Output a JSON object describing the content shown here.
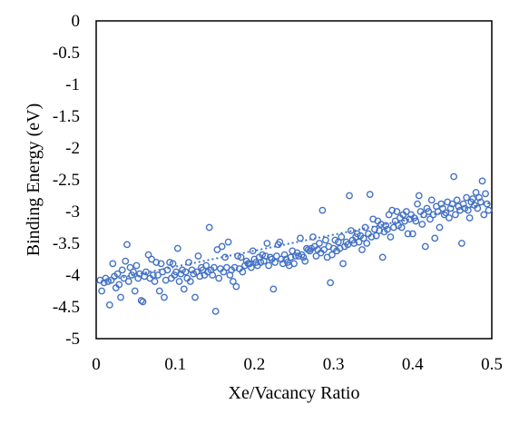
{
  "chart_data": {
    "type": "scatter",
    "title": "",
    "xlabel": "Xe/Vacancy Ratio",
    "ylabel": "Binding Energy (eV)",
    "xlim": [
      0,
      0.5
    ],
    "ylim": [
      -5,
      0
    ],
    "x_ticks": [
      "0",
      "0.1",
      "0.2",
      "0.3",
      "0.4",
      "0.5"
    ],
    "y_ticks": [
      "0",
      "-0.5",
      "-1",
      "-1.5",
      "-2",
      "-2.5",
      "-3",
      "-3.5",
      "-4",
      "-4.5",
      "-5"
    ],
    "grid": false,
    "legend": "none",
    "marker": "open-circle",
    "marker_color": "#4472C4",
    "trendline": {
      "style": "dotted",
      "color": "#4472C4",
      "x": [
        0.0,
        0.5
      ],
      "y": [
        -4.12,
        -2.86
      ]
    },
    "series": [
      {
        "points": [
          [
            0.005,
            -4.08
          ],
          [
            0.007,
            -4.25
          ],
          [
            0.01,
            -4.12
          ],
          [
            0.012,
            -4.05
          ],
          [
            0.015,
            -4.1
          ],
          [
            0.017,
            -4.47
          ],
          [
            0.019,
            -4.08
          ],
          [
            0.021,
            -3.82
          ],
          [
            0.023,
            -4.02
          ],
          [
            0.025,
            -4.2
          ],
          [
            0.027,
            -3.98
          ],
          [
            0.029,
            -4.15
          ],
          [
            0.031,
            -4.35
          ],
          [
            0.033,
            -3.92
          ],
          [
            0.035,
            -4.05
          ],
          [
            0.037,
            -3.78
          ],
          [
            0.039,
            -3.52
          ],
          [
            0.041,
            -4.1
          ],
          [
            0.043,
            -3.88
          ],
          [
            0.045,
            -4.0
          ],
          [
            0.047,
            -3.95
          ],
          [
            0.049,
            -4.25
          ],
          [
            0.051,
            -3.85
          ],
          [
            0.053,
            -4.05
          ],
          [
            0.055,
            -3.98
          ],
          [
            0.057,
            -4.4
          ],
          [
            0.059,
            -4.42
          ],
          [
            0.061,
            -4.02
          ],
          [
            0.063,
            -3.95
          ],
          [
            0.066,
            -3.68
          ],
          [
            0.068,
            -4.05
          ],
          [
            0.07,
            -3.75
          ],
          [
            0.072,
            -4.0
          ],
          [
            0.074,
            -4.1
          ],
          [
            0.076,
            -3.8
          ],
          [
            0.078,
            -4.0
          ],
          [
            0.08,
            -4.25
          ],
          [
            0.082,
            -3.82
          ],
          [
            0.084,
            -3.95
          ],
          [
            0.086,
            -4.35
          ],
          [
            0.088,
            -4.08
          ],
          [
            0.09,
            -3.92
          ],
          [
            0.093,
            -3.8
          ],
          [
            0.095,
            -4.05
          ],
          [
            0.097,
            -3.82
          ],
          [
            0.099,
            -4.0
          ],
          [
            0.101,
            -3.95
          ],
          [
            0.103,
            -3.58
          ],
          [
            0.105,
            -4.1
          ],
          [
            0.107,
            -3.98
          ],
          [
            0.109,
            -3.92
          ],
          [
            0.111,
            -4.22
          ],
          [
            0.113,
            -3.95
          ],
          [
            0.115,
            -4.05
          ],
          [
            0.117,
            -3.8
          ],
          [
            0.119,
            -4.1
          ],
          [
            0.121,
            -3.92
          ],
          [
            0.123,
            -3.98
          ],
          [
            0.125,
            -4.35
          ],
          [
            0.127,
            -3.95
          ],
          [
            0.129,
            -3.7
          ],
          [
            0.131,
            -4.02
          ],
          [
            0.133,
            -3.88
          ],
          [
            0.135,
            -3.92
          ],
          [
            0.137,
            -4.0
          ],
          [
            0.139,
            -3.85
          ],
          [
            0.141,
            -3.95
          ],
          [
            0.143,
            -3.25
          ],
          [
            0.145,
            -3.92
          ],
          [
            0.147,
            -4.0
          ],
          [
            0.149,
            -3.88
          ],
          [
            0.151,
            -4.57
          ],
          [
            0.153,
            -3.6
          ],
          [
            0.155,
            -4.05
          ],
          [
            0.157,
            -3.9
          ],
          [
            0.159,
            -3.55
          ],
          [
            0.161,
            -3.95
          ],
          [
            0.163,
            -3.72
          ],
          [
            0.165,
            -3.88
          ],
          [
            0.167,
            -3.48
          ],
          [
            0.169,
            -4.0
          ],
          [
            0.171,
            -3.92
          ],
          [
            0.173,
            -4.1
          ],
          [
            0.175,
            -3.88
          ],
          [
            0.177,
            -4.18
          ],
          [
            0.179,
            -3.7
          ],
          [
            0.181,
            -3.9
          ],
          [
            0.183,
            -3.72
          ],
          [
            0.185,
            -3.95
          ],
          [
            0.188,
            -3.85
          ],
          [
            0.19,
            -3.78
          ],
          [
            0.192,
            -3.82
          ],
          [
            0.194,
            -3.82
          ],
          [
            0.196,
            -3.88
          ],
          [
            0.198,
            -3.62
          ],
          [
            0.2,
            -3.75
          ],
          [
            0.202,
            -3.8
          ],
          [
            0.204,
            -3.85
          ],
          [
            0.206,
            -3.72
          ],
          [
            0.208,
            -3.8
          ],
          [
            0.21,
            -3.68
          ],
          [
            0.212,
            -3.78
          ],
          [
            0.214,
            -3.7
          ],
          [
            0.216,
            -3.5
          ],
          [
            0.218,
            -3.85
          ],
          [
            0.22,
            -3.72
          ],
          [
            0.222,
            -3.75
          ],
          [
            0.224,
            -4.22
          ],
          [
            0.226,
            -3.8
          ],
          [
            0.228,
            -3.7
          ],
          [
            0.23,
            -3.52
          ],
          [
            0.232,
            -3.48
          ],
          [
            0.234,
            -3.75
          ],
          [
            0.236,
            -3.82
          ],
          [
            0.238,
            -3.68
          ],
          [
            0.24,
            -3.75
          ],
          [
            0.242,
            -3.8
          ],
          [
            0.244,
            -3.85
          ],
          [
            0.246,
            -3.72
          ],
          [
            0.248,
            -3.62
          ],
          [
            0.25,
            -3.82
          ],
          [
            0.252,
            -3.7
          ],
          [
            0.254,
            -3.65
          ],
          [
            0.256,
            -3.7
          ],
          [
            0.258,
            -3.42
          ],
          [
            0.26,
            -3.68
          ],
          [
            0.262,
            -3.72
          ],
          [
            0.264,
            -3.78
          ],
          [
            0.266,
            -3.58
          ],
          [
            0.268,
            -3.6
          ],
          [
            0.27,
            -3.62
          ],
          [
            0.272,
            -3.58
          ],
          [
            0.274,
            -3.4
          ],
          [
            0.276,
            -3.55
          ],
          [
            0.278,
            -3.7
          ],
          [
            0.28,
            -3.6
          ],
          [
            0.282,
            -3.5
          ],
          [
            0.284,
            -3.65
          ],
          [
            0.286,
            -2.98
          ],
          [
            0.288,
            -3.6
          ],
          [
            0.29,
            -3.45
          ],
          [
            0.292,
            -3.72
          ],
          [
            0.294,
            -3.55
          ],
          [
            0.296,
            -4.12
          ],
          [
            0.298,
            -3.68
          ],
          [
            0.3,
            -3.58
          ],
          [
            0.302,
            -3.45
          ],
          [
            0.304,
            -3.62
          ],
          [
            0.306,
            -3.48
          ],
          [
            0.308,
            -3.58
          ],
          [
            0.31,
            -3.4
          ],
          [
            0.312,
            -3.82
          ],
          [
            0.314,
            -3.55
          ],
          [
            0.316,
            -3.48
          ],
          [
            0.318,
            -3.52
          ],
          [
            0.32,
            -2.75
          ],
          [
            0.322,
            -3.3
          ],
          [
            0.324,
            -3.45
          ],
          [
            0.326,
            -3.5
          ],
          [
            0.328,
            -3.4
          ],
          [
            0.33,
            -3.35
          ],
          [
            0.332,
            -3.48
          ],
          [
            0.334,
            -3.38
          ],
          [
            0.336,
            -3.6
          ],
          [
            0.338,
            -3.42
          ],
          [
            0.34,
            -3.25
          ],
          [
            0.342,
            -3.5
          ],
          [
            0.344,
            -3.35
          ],
          [
            0.346,
            -2.73
          ],
          [
            0.348,
            -3.4
          ],
          [
            0.35,
            -3.12
          ],
          [
            0.352,
            -3.28
          ],
          [
            0.354,
            -3.38
          ],
          [
            0.356,
            -3.15
          ],
          [
            0.358,
            -3.3
          ],
          [
            0.36,
            -3.2
          ],
          [
            0.362,
            -3.72
          ],
          [
            0.364,
            -3.32
          ],
          [
            0.366,
            -3.22
          ],
          [
            0.368,
            -3.28
          ],
          [
            0.37,
            -3.05
          ],
          [
            0.372,
            -3.4
          ],
          [
            0.374,
            -2.98
          ],
          [
            0.376,
            -3.25
          ],
          [
            0.378,
            -3.15
          ],
          [
            0.38,
            -3.0
          ],
          [
            0.382,
            -3.22
          ],
          [
            0.384,
            -3.1
          ],
          [
            0.386,
            -3.25
          ],
          [
            0.388,
            -3.05
          ],
          [
            0.39,
            -3.15
          ],
          [
            0.392,
            -3.0
          ],
          [
            0.394,
            -3.35
          ],
          [
            0.396,
            -3.12
          ],
          [
            0.398,
            -3.05
          ],
          [
            0.4,
            -3.35
          ],
          [
            0.402,
            -3.1
          ],
          [
            0.404,
            -3.15
          ],
          [
            0.406,
            -2.88
          ],
          [
            0.408,
            -2.75
          ],
          [
            0.41,
            -3.0
          ],
          [
            0.412,
            -3.2
          ],
          [
            0.414,
            -3.05
          ],
          [
            0.416,
            -3.55
          ],
          [
            0.418,
            -2.95
          ],
          [
            0.42,
            -3.0
          ],
          [
            0.422,
            -3.12
          ],
          [
            0.424,
            -2.82
          ],
          [
            0.426,
            -3.05
          ],
          [
            0.428,
            -3.42
          ],
          [
            0.43,
            -2.92
          ],
          [
            0.432,
            -3.0
          ],
          [
            0.434,
            -3.25
          ],
          [
            0.436,
            -2.88
          ],
          [
            0.438,
            -2.95
          ],
          [
            0.44,
            -3.05
          ],
          [
            0.442,
            -3.02
          ],
          [
            0.444,
            -2.85
          ],
          [
            0.446,
            -3.1
          ],
          [
            0.448,
            -2.95
          ],
          [
            0.45,
            -2.88
          ],
          [
            0.452,
            -2.45
          ],
          [
            0.454,
            -3.05
          ],
          [
            0.456,
            -2.82
          ],
          [
            0.458,
            -2.92
          ],
          [
            0.46,
            -2.98
          ],
          [
            0.462,
            -3.5
          ],
          [
            0.464,
            -2.88
          ],
          [
            0.466,
            -2.95
          ],
          [
            0.468,
            -2.78
          ],
          [
            0.47,
            -2.98
          ],
          [
            0.472,
            -3.1
          ],
          [
            0.474,
            -2.85
          ],
          [
            0.476,
            -2.8
          ],
          [
            0.478,
            -2.9
          ],
          [
            0.48,
            -2.7
          ],
          [
            0.482,
            -2.95
          ],
          [
            0.484,
            -2.78
          ],
          [
            0.486,
            -2.85
          ],
          [
            0.488,
            -2.52
          ],
          [
            0.49,
            -3.05
          ],
          [
            0.492,
            -2.72
          ],
          [
            0.494,
            -2.88
          ],
          [
            0.496,
            -2.98
          ]
        ]
      }
    ]
  }
}
